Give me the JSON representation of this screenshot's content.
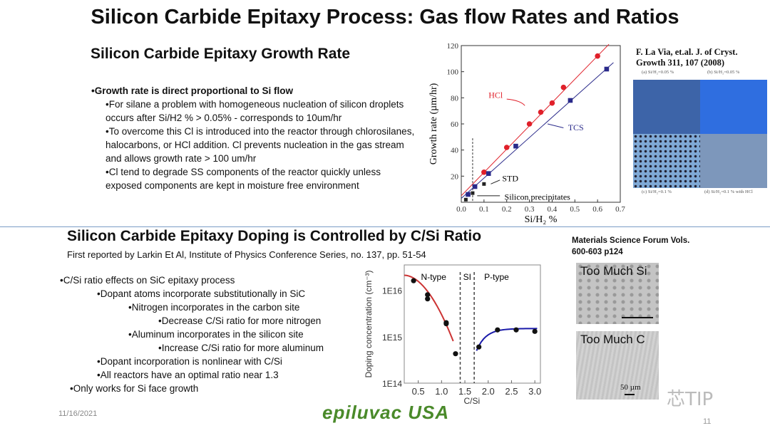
{
  "title": "Silicon Carbide Epitaxy Process:  Gas flow Rates and Ratios",
  "section1": {
    "heading": "Silicon Carbide Epitaxy Growth Rate",
    "bullets": [
      {
        "text": "•Growth rate is direct proportional to Si flow",
        "level": 0,
        "bold": true
      },
      {
        "text": "•For silane a problem with homogeneous nucleation of silicon droplets occurs after Si/H2 % > 0.05% - corresponds to 10um/hr",
        "level": 1
      },
      {
        "text": "•To overcome this Cl is introduced into the reactor through chlorosilanes, halocarbons, or HCl addition. Cl prevents nucleation in the gas stream and allows growth rate > 100 um/hr",
        "level": 1
      },
      {
        "text": "•Cl tend to degrade SS components of the reactor quickly unless exposed components are kept in moisture free environment",
        "level": 1
      }
    ],
    "citation": "F. La Via, et.al. J. of Cryst. Growth 311, 107 (2008)",
    "micrograph_captions": [
      "(a) Si/H₂=0.05 %",
      "(b) Si/H₂=0.05 %",
      "(c) Si/H₂=0.1 %",
      "(d) Si/H₂=0.1 % with HCl"
    ]
  },
  "section2": {
    "heading": "Silicon Carbide Epitaxy Doping is Controlled by C/Si Ratio",
    "reference": "First reported by Larkin Et Al, Institute of Physics Conference Series, no. 137, pp. 51-54",
    "bullets": [
      {
        "text": "•C/Si ratio effects on SiC epitaxy process",
        "level": 0
      },
      {
        "text": "•Dopant atoms incorporate substitutionally in SiC",
        "level": 1
      },
      {
        "text": "•Nitrogen incorporates in the carbon site",
        "level": 2
      },
      {
        "text": "•Decrease C/Si ratio for more nitrogen",
        "level": 3
      },
      {
        "text": "•Aluminum incorporates in the silicon site",
        "level": 2
      },
      {
        "text": "•Increase C/Si ratio for more aluminum",
        "level": 3
      },
      {
        "text": "•Dopant incorporation is nonlinear with C/Si",
        "level": 1
      },
      {
        "text": "•All reactors have an optimal ratio near 1.3",
        "level": 1
      },
      {
        "text": "•Only works for Si face growth",
        "level": 0
      }
    ],
    "citation": "Materials Science Forum Vols. 600-603 p124",
    "sem_labels": [
      "Too Much Si",
      "Too Much C"
    ],
    "scale_bar": "50 µm"
  },
  "footer": {
    "date": "11/16/2021",
    "logo": "epiluvac USA",
    "page": "11",
    "watermark": "芯TIP"
  },
  "chart_data": [
    {
      "type": "scatter",
      "xlabel": "Si/H₂ %",
      "ylabel": "Growth rate (µm/hr)",
      "xlim": [
        0,
        0.7
      ],
      "ylim": [
        0,
        120
      ],
      "xticks": [
        "0.0",
        "0.1",
        "0.2",
        "0.3",
        "0.4",
        "0.5",
        "0.6",
        "0.7"
      ],
      "yticks": [
        "20",
        "40",
        "60",
        "80",
        "100",
        "120"
      ],
      "series": [
        {
          "name": "HCl",
          "color": "#e0202a",
          "marker": "circle",
          "x": [
            0.1,
            0.2,
            0.3,
            0.35,
            0.4,
            0.45,
            0.6
          ],
          "y": [
            23,
            42,
            60,
            69,
            76,
            88,
            112
          ],
          "fit": [
            [
              0,
              5
            ],
            [
              0.65,
              121
            ]
          ]
        },
        {
          "name": "TCS",
          "color": "#2a2a8a",
          "marker": "square",
          "x": [
            0.03,
            0.06,
            0.12,
            0.24,
            0.48,
            0.64
          ],
          "y": [
            6,
            12,
            22,
            43,
            78,
            102
          ],
          "fit": [
            [
              0,
              3
            ],
            [
              0.67,
              107
            ]
          ]
        },
        {
          "name": "STD",
          "color": "#222222",
          "marker": "square",
          "x": [
            0.02,
            0.05,
            0.1
          ],
          "y": [
            2,
            7,
            14
          ]
        }
      ],
      "annotations": [
        "Silicon precipitates"
      ],
      "vline": 0.05
    },
    {
      "type": "scatter",
      "xlabel": "C/Si",
      "ylabel": "Doping concentration (cm⁻³)",
      "xlim": [
        0.2,
        3.12
      ],
      "ylim": [
        100000000000000.0,
        3.5e+16
      ],
      "yscale": "log",
      "xticks": [
        "0.5",
        "1.0",
        "1.5",
        "2.0",
        "2.5",
        "3.0"
      ],
      "yticks": [
        "1E14",
        "1E15",
        "1E16"
      ],
      "regions": [
        "N-type",
        "SI",
        "P-type"
      ],
      "vlines": [
        1.4,
        1.7
      ],
      "series": [
        {
          "color": "#cc2a2a",
          "x": [
            0.4,
            0.7,
            0.7,
            1.1,
            1.1,
            1.3
          ],
          "y": [
            1.6e+16,
            8000000000000000.0,
            6500000000000000.0,
            2000000000000000.0,
            1900000000000000.0,
            430000000000000.0
          ]
        },
        {
          "color": "#1a1aaa",
          "x": [
            1.8,
            2.2,
            2.6,
            3.0
          ],
          "y": [
            600000000000000.0,
            1400000000000000.0,
            1400000000000000.0,
            1300000000000000.0
          ]
        }
      ]
    }
  ]
}
